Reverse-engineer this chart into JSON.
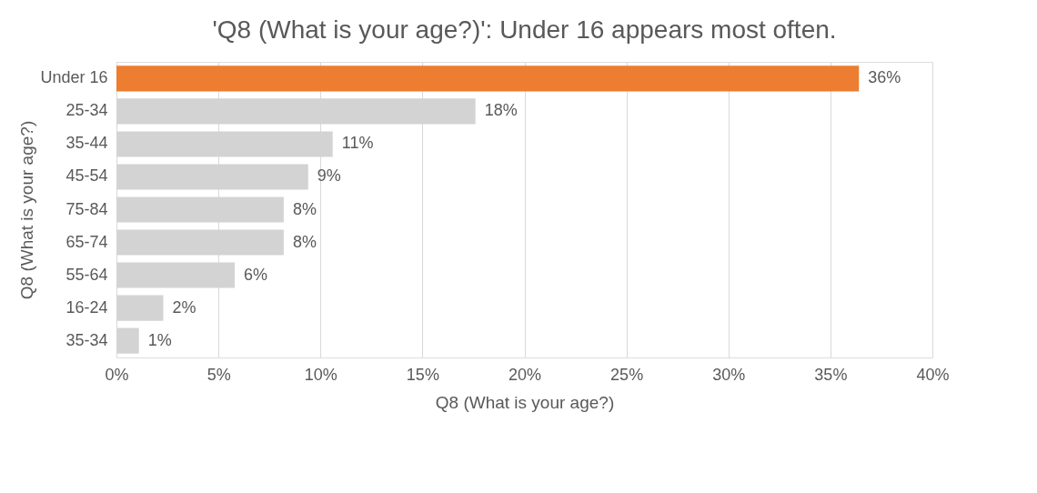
{
  "chart_data": {
    "type": "bar",
    "orientation": "horizontal",
    "title": "'Q8 (What is your age?)': Under 16 appears most often.",
    "xlabel": "Q8 (What is your age?)",
    "ylabel": "Q8 (What is your age?)",
    "categories": [
      "Under 16",
      "25-34",
      "35-44",
      "45-54",
      "75-84",
      "65-74",
      "55-64",
      "16-24",
      "35-34"
    ],
    "values": [
      36.4,
      17.6,
      10.6,
      9.4,
      8.2,
      8.2,
      5.8,
      2.3,
      1.1
    ],
    "value_labels": [
      "36%",
      "18%",
      "11%",
      "9%",
      "8%",
      "8%",
      "6%",
      "2%",
      "1%"
    ],
    "colors": [
      "#ed7d31",
      "#d3d3d3",
      "#d3d3d3",
      "#d3d3d3",
      "#d3d3d3",
      "#d3d3d3",
      "#d3d3d3",
      "#d3d3d3",
      "#d3d3d3"
    ],
    "xlim": [
      0,
      40
    ],
    "xticks": [
      {
        "value": 0,
        "label": "0%"
      },
      {
        "value": 5,
        "label": "5%"
      },
      {
        "value": 10,
        "label": "10%"
      },
      {
        "value": 15,
        "label": "15%"
      },
      {
        "value": 20,
        "label": "20%"
      },
      {
        "value": 25,
        "label": "25%"
      },
      {
        "value": 30,
        "label": "30%"
      },
      {
        "value": 35,
        "label": "35%"
      },
      {
        "value": 40,
        "label": "40%"
      }
    ],
    "grid": "x"
  }
}
